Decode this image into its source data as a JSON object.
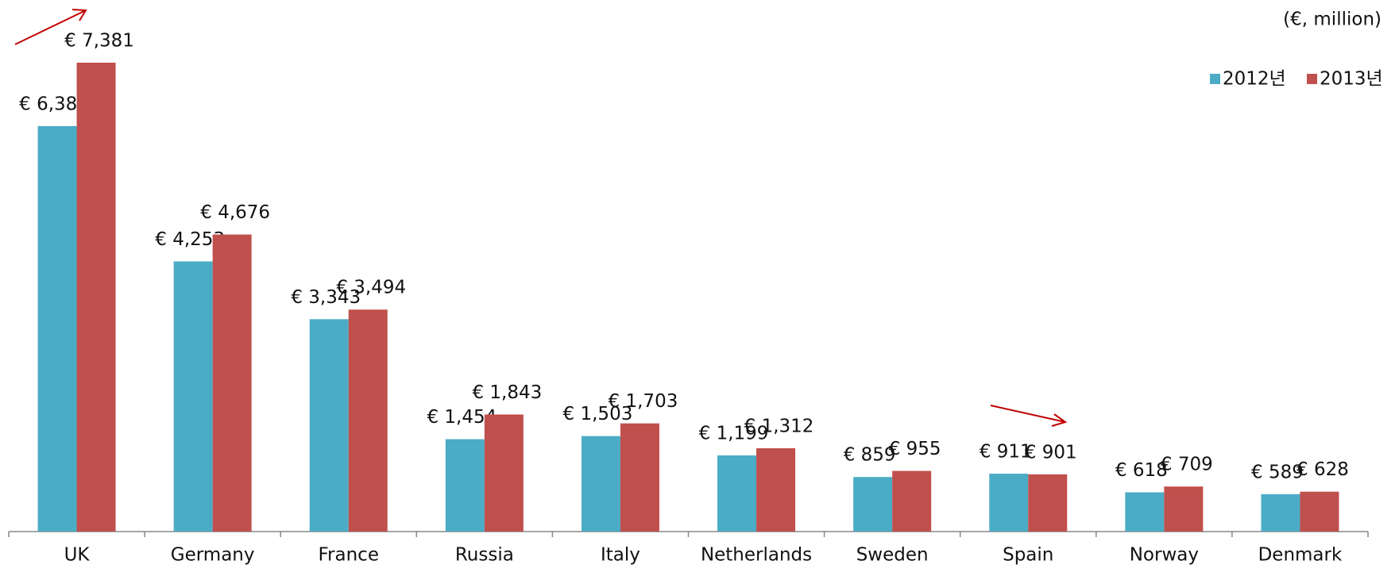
{
  "chart_data": {
    "type": "bar",
    "unit_label": "(€, million)",
    "categories": [
      "UK",
      "Germany",
      "France",
      "Russia",
      "Italy",
      "Netherlands",
      "Sweden",
      "Spain",
      "Norway",
      "Denmark"
    ],
    "series": [
      {
        "name": "2012년",
        "color": "#4bacc6",
        "values": [
          6383,
          4253,
          3343,
          1454,
          1503,
          1199,
          859,
          911,
          618,
          589
        ],
        "value_labels": [
          "€ 6,383",
          "€ 4,253",
          "€ 3,343",
          "€ 1,454",
          "€ 1,503",
          "€ 1,199",
          "€ 859",
          "€ 911",
          "€ 618",
          "€ 589"
        ]
      },
      {
        "name": "2013년",
        "color": "#c0504d",
        "values": [
          7381,
          4676,
          3494,
          1843,
          1703,
          1312,
          955,
          901,
          709,
          628
        ],
        "value_labels": [
          "€ 7,381",
          "€ 4,676",
          "€ 3,494",
          "€ 1,843",
          "€ 1,703",
          "€ 1,312",
          "€ 955",
          "€ 901",
          "€ 709",
          "€ 628"
        ]
      }
    ],
    "legend": "top-right"
  }
}
